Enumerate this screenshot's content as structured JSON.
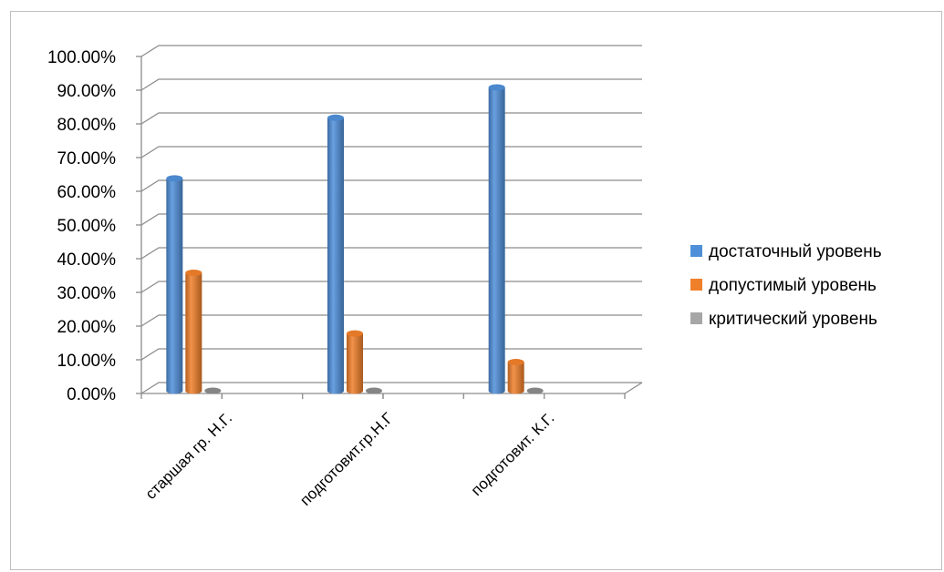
{
  "chart_data": {
    "type": "bar",
    "title": "",
    "xlabel": "",
    "ylabel": "",
    "categories": [
      "старшая гр. Н.Г.",
      "подготовит.гр.Н.Г",
      "подготовит. К.Г."
    ],
    "series": [
      {
        "name": "достаточный уровень",
        "color": "#4f8fd9",
        "values": [
          0.63,
          0.81,
          0.9
        ]
      },
      {
        "name": "допустимый уровень",
        "color": "#f07f2a",
        "values": [
          0.35,
          0.17,
          0.085
        ]
      },
      {
        "name": "критический уровень",
        "color": "#a6a6a6",
        "values": [
          0.0,
          0.0,
          0.0
        ]
      }
    ],
    "yticks": [
      "0.00%",
      "10.00%",
      "20.00%",
      "30.00%",
      "40.00%",
      "50.00%",
      "60.00%",
      "70.00%",
      "80.00%",
      "90.00%",
      "100.00%"
    ],
    "ylim": [
      0,
      1
    ],
    "grid": true,
    "legend_position": "right"
  }
}
